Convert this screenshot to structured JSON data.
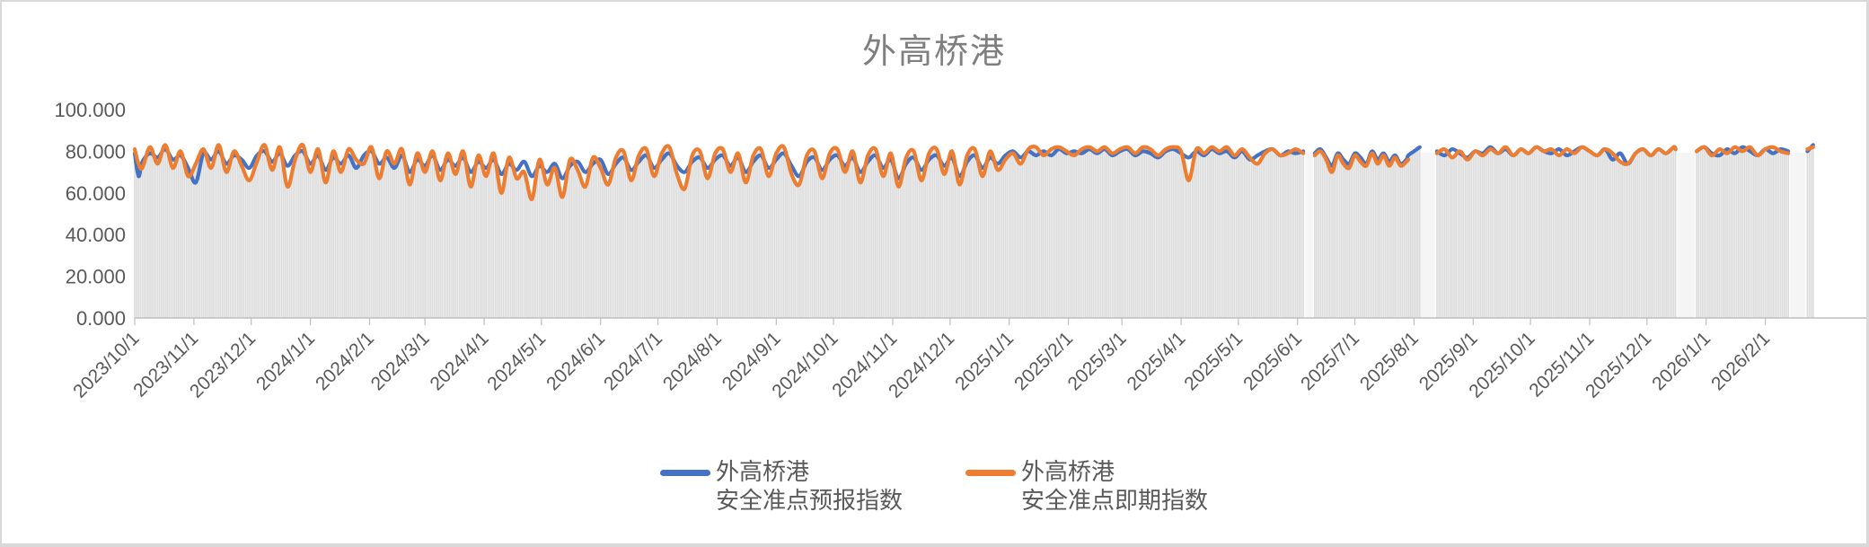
{
  "title": "外高桥港",
  "colors": {
    "forecast_line": "#4472C4",
    "spot_line": "#ED7D31",
    "bars": "#dcdcdc",
    "gap_stripe": "#f5f5f5",
    "title_text": "#7f7f7f",
    "axis_text": "#595959",
    "axis_line": "#bfbfbf",
    "frame": "#d9d9d9"
  },
  "y_axis": {
    "min": 0,
    "max": 100,
    "ticks": [
      {
        "value": 0,
        "label": "0.000"
      },
      {
        "value": 20,
        "label": "20.000"
      },
      {
        "value": 40,
        "label": "40.000"
      },
      {
        "value": 60,
        "label": "60.000"
      },
      {
        "value": 80,
        "label": "80.000"
      },
      {
        "value": 100,
        "label": "100.000"
      }
    ]
  },
  "x_axis": {
    "tick_labels": [
      "2023/10/1",
      "2023/11/1",
      "2023/12/1",
      "2024/1/1",
      "2024/2/1",
      "2024/3/1",
      "2024/4/1",
      "2024/5/1",
      "2024/6/1",
      "2024/7/1",
      "2024/8/1",
      "2024/9/1",
      "2024/10/1",
      "2024/11/1",
      "2024/12/1",
      "2025/1/1",
      "2025/2/1",
      "2025/3/1",
      "2025/4/1",
      "2025/5/1",
      "2025/6/1",
      "2025/7/1",
      "2025/8/1",
      "2025/9/1",
      "2025/10/1",
      "2025/11/1",
      "2025/12/1",
      "2026/1/1",
      "2026/2/1"
    ],
    "tick_day_offsets": [
      0,
      31,
      61,
      92,
      123,
      152,
      183,
      213,
      244,
      274,
      305,
      336,
      366,
      397,
      427,
      458,
      489,
      517,
      548,
      578,
      609,
      639,
      670,
      701,
      731,
      762,
      792,
      823,
      854
    ]
  },
  "legend": [
    {
      "line1": "外高桥港",
      "line2": "安全准点预报指数",
      "color": "#4472C4"
    },
    {
      "line1": "外高桥港",
      "line2": "安全准点即期指数",
      "color": "#ED7D31"
    }
  ],
  "chart_data": {
    "type": "line",
    "title": "外高桥港",
    "xlabel": "",
    "ylabel": "",
    "ylim": [
      0,
      100
    ],
    "x_unit": "days since 2023/10/1",
    "grid": false,
    "legend_position": "bottom",
    "background_bars": "thin gray daily bars rise from 0 to the daily index level (spot value where present, else forecast value)",
    "gaps_days": [
      [
        613,
        617
      ],
      [
        668,
        681
      ],
      [
        808,
        817
      ],
      [
        867,
        875
      ]
    ],
    "series": [
      {
        "name": "外高桥港 安全准点预报指数",
        "color": "#4472C4",
        "point_index": 1
      },
      {
        "name": "外高桥港 安全准点即期指数",
        "color": "#ED7D31",
        "point_index": 2
      }
    ],
    "segments": [
      {
        "points": [
          [
            0,
            79,
            81
          ],
          [
            2,
            68,
            74
          ],
          [
            4,
            75,
            72
          ],
          [
            8,
            79,
            82
          ],
          [
            12,
            77,
            74
          ],
          [
            16,
            81,
            83
          ],
          [
            20,
            76,
            72
          ],
          [
            24,
            78,
            80
          ],
          [
            28,
            72,
            68
          ],
          [
            32,
            65,
            74
          ],
          [
            36,
            79,
            81
          ],
          [
            40,
            76,
            72
          ],
          [
            44,
            80,
            83
          ],
          [
            48,
            74,
            70
          ],
          [
            52,
            78,
            80
          ],
          [
            56,
            76,
            73
          ],
          [
            60,
            72,
            66
          ],
          [
            64,
            78,
            75
          ],
          [
            68,
            80,
            83
          ],
          [
            72,
            75,
            71
          ],
          [
            76,
            79,
            82
          ],
          [
            80,
            73,
            63
          ],
          [
            84,
            78,
            76
          ],
          [
            88,
            80,
            83
          ],
          [
            92,
            74,
            70
          ],
          [
            96,
            78,
            81
          ],
          [
            100,
            71,
            65
          ],
          [
            104,
            77,
            80
          ],
          [
            108,
            74,
            70
          ],
          [
            112,
            78,
            81
          ],
          [
            116,
            72,
            76
          ],
          [
            120,
            78,
            74
          ],
          [
            124,
            80,
            82
          ],
          [
            128,
            74,
            67
          ],
          [
            132,
            77,
            80
          ],
          [
            136,
            72,
            74
          ],
          [
            140,
            78,
            81
          ],
          [
            144,
            70,
            64
          ],
          [
            148,
            76,
            79
          ],
          [
            152,
            73,
            70
          ],
          [
            156,
            78,
            80
          ],
          [
            160,
            71,
            66
          ],
          [
            164,
            76,
            79
          ],
          [
            168,
            73,
            69
          ],
          [
            172,
            77,
            80
          ],
          [
            176,
            70,
            63
          ],
          [
            180,
            75,
            78
          ],
          [
            184,
            72,
            68
          ],
          [
            188,
            76,
            79
          ],
          [
            192,
            69,
            60
          ],
          [
            196,
            74,
            77
          ],
          [
            200,
            71,
            67
          ],
          [
            204,
            75,
            70
          ],
          [
            208,
            68,
            57
          ],
          [
            212,
            73,
            76
          ],
          [
            216,
            70,
            64
          ],
          [
            220,
            74,
            72
          ],
          [
            224,
            67,
            58
          ],
          [
            228,
            73,
            76
          ],
          [
            232,
            75,
            71
          ],
          [
            236,
            70,
            63
          ],
          [
            240,
            74,
            77
          ],
          [
            244,
            76,
            72
          ],
          [
            248,
            69,
            64
          ],
          [
            252,
            74,
            77
          ],
          [
            256,
            77,
            80
          ],
          [
            260,
            71,
            66
          ],
          [
            264,
            75,
            78
          ],
          [
            268,
            78,
            81
          ],
          [
            272,
            72,
            68
          ],
          [
            276,
            76,
            79
          ],
          [
            280,
            79,
            82
          ],
          [
            284,
            73,
            69
          ],
          [
            288,
            70,
            62
          ],
          [
            292,
            75,
            78
          ],
          [
            296,
            77,
            80
          ],
          [
            300,
            72,
            67
          ],
          [
            304,
            76,
            79
          ],
          [
            308,
            78,
            81
          ],
          [
            312,
            73,
            70
          ],
          [
            316,
            77,
            79
          ],
          [
            320,
            70,
            65
          ],
          [
            324,
            75,
            78
          ],
          [
            328,
            78,
            81
          ],
          [
            332,
            72,
            68
          ],
          [
            336,
            76,
            79
          ],
          [
            340,
            79,
            82
          ],
          [
            344,
            73,
            69
          ],
          [
            348,
            68,
            64
          ],
          [
            352,
            75,
            78
          ],
          [
            356,
            77,
            80
          ],
          [
            360,
            71,
            67
          ],
          [
            364,
            76,
            79
          ],
          [
            368,
            78,
            81
          ],
          [
            372,
            73,
            70
          ],
          [
            376,
            77,
            80
          ],
          [
            380,
            70,
            65
          ],
          [
            384,
            75,
            78
          ],
          [
            388,
            78,
            81
          ],
          [
            392,
            72,
            68
          ],
          [
            396,
            76,
            79
          ],
          [
            400,
            67,
            63
          ],
          [
            404,
            74,
            77
          ],
          [
            408,
            77,
            80
          ],
          [
            412,
            71,
            66
          ],
          [
            416,
            76,
            79
          ],
          [
            420,
            78,
            81
          ],
          [
            424,
            73,
            69
          ],
          [
            428,
            77,
            80
          ],
          [
            432,
            68,
            64
          ],
          [
            436,
            75,
            78
          ],
          [
            440,
            78,
            81
          ],
          [
            444,
            72,
            68
          ],
          [
            448,
            77,
            80
          ],
          [
            452,
            74,
            71
          ],
          [
            456,
            78,
            76
          ],
          [
            460,
            80,
            79
          ],
          [
            464,
            77,
            74
          ],
          [
            468,
            80,
            81
          ],
          [
            472,
            78,
            82
          ],
          [
            476,
            80,
            78
          ],
          [
            480,
            78,
            81
          ],
          [
            484,
            81,
            82
          ],
          [
            488,
            79,
            80
          ],
          [
            492,
            80,
            78
          ],
          [
            496,
            79,
            81
          ],
          [
            500,
            81,
            82
          ],
          [
            504,
            79,
            80
          ],
          [
            508,
            81,
            82
          ],
          [
            512,
            78,
            79
          ],
          [
            516,
            80,
            81
          ],
          [
            520,
            81,
            82
          ],
          [
            524,
            78,
            79
          ],
          [
            528,
            80,
            82
          ],
          [
            532,
            79,
            81
          ],
          [
            536,
            77,
            78
          ],
          [
            540,
            80,
            81
          ],
          [
            544,
            81,
            82
          ],
          [
            548,
            79,
            80
          ],
          [
            552,
            77,
            66
          ],
          [
            556,
            80,
            81
          ],
          [
            560,
            78,
            79
          ],
          [
            564,
            81,
            82
          ],
          [
            568,
            79,
            80
          ],
          [
            572,
            80,
            82
          ],
          [
            576,
            77,
            78
          ],
          [
            580,
            80,
            81
          ],
          [
            584,
            76,
            77
          ],
          [
            588,
            78,
            74
          ],
          [
            592,
            80,
            79
          ],
          [
            596,
            81,
            81
          ],
          [
            600,
            78,
            78
          ],
          [
            604,
            80,
            79
          ],
          [
            608,
            79,
            81
          ],
          [
            612,
            80,
            79
          ]
        ]
      },
      {
        "points": [
          [
            618,
            79,
            78
          ],
          [
            621,
            81,
            80
          ],
          [
            624,
            77,
            76
          ],
          [
            627,
            73,
            70
          ],
          [
            630,
            79,
            78
          ],
          [
            633,
            76,
            74
          ],
          [
            636,
            74,
            72
          ],
          [
            639,
            79,
            78
          ],
          [
            642,
            77,
            75
          ],
          [
            645,
            74,
            73
          ],
          [
            648,
            80,
            79
          ],
          [
            651,
            76,
            74
          ],
          [
            654,
            79,
            78
          ],
          [
            657,
            75,
            73
          ],
          [
            660,
            78,
            77
          ],
          [
            663,
            74,
            73
          ],
          [
            666,
            76,
            75
          ],
          [
            667,
            78,
            76
          ],
          [
            670,
            80,
            null
          ],
          [
            673,
            82,
            null
          ]
        ]
      },
      {
        "points": [
          [
            682,
            80,
            79
          ],
          [
            686,
            78,
            81
          ],
          [
            690,
            81,
            77
          ],
          [
            694,
            79,
            80
          ],
          [
            698,
            77,
            76
          ],
          [
            702,
            80,
            80
          ],
          [
            706,
            79,
            78
          ],
          [
            710,
            82,
            81
          ],
          [
            714,
            79,
            79
          ],
          [
            718,
            81,
            82
          ],
          [
            722,
            78,
            78
          ],
          [
            726,
            81,
            81
          ],
          [
            730,
            79,
            79
          ],
          [
            734,
            82,
            82
          ],
          [
            738,
            80,
            80
          ],
          [
            742,
            79,
            81
          ],
          [
            746,
            81,
            78
          ],
          [
            750,
            78,
            81
          ],
          [
            754,
            80,
            79
          ],
          [
            758,
            82,
            82
          ],
          [
            762,
            80,
            80
          ],
          [
            766,
            78,
            78
          ],
          [
            770,
            81,
            81
          ],
          [
            774,
            76,
            79
          ],
          [
            778,
            79,
            75
          ],
          [
            782,
            74,
            74
          ],
          [
            786,
            79,
            79
          ],
          [
            790,
            81,
            81
          ],
          [
            794,
            78,
            78
          ],
          [
            798,
            81,
            81
          ],
          [
            802,
            79,
            79
          ],
          [
            806,
            82,
            82
          ],
          [
            807,
            81,
            81
          ]
        ]
      },
      {
        "points": [
          [
            818,
            80,
            80
          ],
          [
            822,
            82,
            82
          ],
          [
            826,
            79,
            78
          ],
          [
            830,
            78,
            81
          ],
          [
            834,
            81,
            79
          ],
          [
            838,
            79,
            82
          ],
          [
            842,
            82,
            80
          ],
          [
            846,
            80,
            82
          ],
          [
            850,
            78,
            78
          ],
          [
            854,
            81,
            81
          ],
          [
            858,
            79,
            82
          ],
          [
            862,
            81,
            80
          ],
          [
            866,
            80,
            79
          ]
        ]
      },
      {
        "points": [
          [
            876,
            80,
            81
          ],
          [
            879,
            83,
            82
          ]
        ]
      }
    ]
  }
}
